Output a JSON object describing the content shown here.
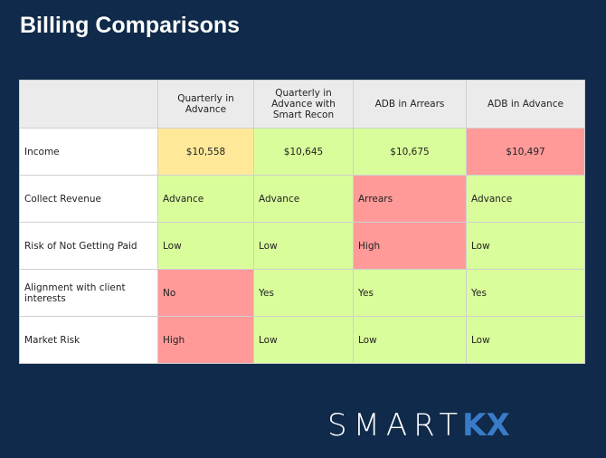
{
  "title": "Billing Comparisons",
  "columns": [
    "",
    "Quarterly in Advance",
    "Quarterly in Advance with Smart Recon",
    "ADB in Arrears",
    "ADB in Advance"
  ],
  "rows": [
    {
      "label": "Income",
      "cells": [
        {
          "v": "$10,558",
          "s": "yellow"
        },
        {
          "v": "$10,645",
          "s": "green"
        },
        {
          "v": "$10,675",
          "s": "green"
        },
        {
          "v": "$10,497",
          "s": "red"
        }
      ]
    },
    {
      "label": "Collect Revenue",
      "cells": [
        {
          "v": "Advance",
          "s": "green"
        },
        {
          "v": "Advance",
          "s": "green"
        },
        {
          "v": "Arrears",
          "s": "red"
        },
        {
          "v": "Advance",
          "s": "green"
        }
      ]
    },
    {
      "label": "Risk of Not Getting Paid",
      "cells": [
        {
          "v": "Low",
          "s": "green"
        },
        {
          "v": "Low",
          "s": "green"
        },
        {
          "v": "High",
          "s": "red"
        },
        {
          "v": "Low",
          "s": "green"
        }
      ]
    },
    {
      "label": "Alignment with client interests",
      "cells": [
        {
          "v": "No",
          "s": "red"
        },
        {
          "v": "Yes",
          "s": "green"
        },
        {
          "v": "Yes",
          "s": "green"
        },
        {
          "v": "Yes",
          "s": "green"
        }
      ]
    },
    {
      "label": "Market Risk",
      "cells": [
        {
          "v": "High",
          "s": "red"
        },
        {
          "v": "Low",
          "s": "green"
        },
        {
          "v": "Low",
          "s": "green"
        },
        {
          "v": "Low",
          "s": "green"
        }
      ]
    }
  ],
  "colors": {
    "background": "#0f2a4a",
    "green": "#d9fd9a",
    "yellow": "#ffe999",
    "red": "#ff9a99",
    "header": "#ebebeb",
    "logo_accent": "#3a7bc8"
  },
  "logo": {
    "text": "SMART",
    "accent": "KX"
  }
}
